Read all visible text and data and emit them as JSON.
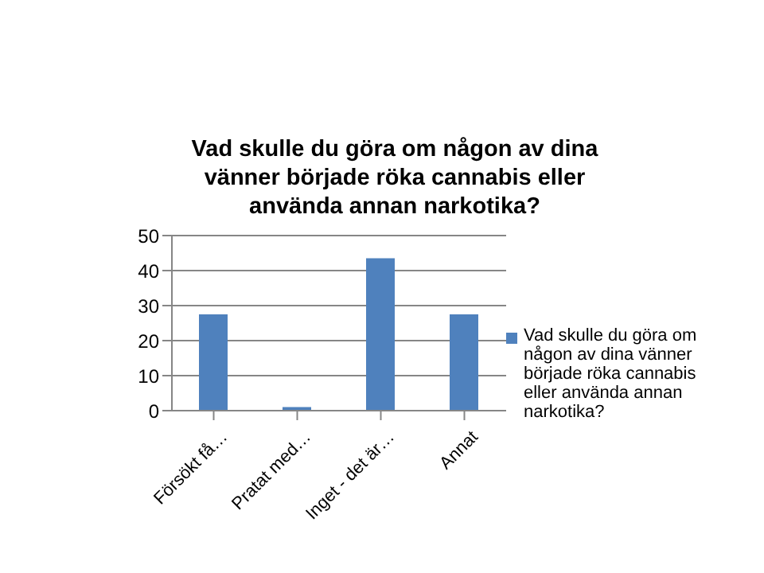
{
  "chart_data": {
    "type": "bar",
    "title": "Vad skulle du göra om någon av dina vänner började röka cannabis eller använda annan narkotika?",
    "categories": [
      "Försökt få…",
      "Pratat med…",
      "Inget - det är…",
      "Annat"
    ],
    "series": [
      {
        "name": "Vad skulle du göra om någon av dina vänner började röka cannabis eller använda annan narkotika?",
        "color": "#4f81bd",
        "values": [
          27.5,
          1,
          43.5,
          27.5
        ]
      }
    ],
    "ylim": [
      0,
      50
    ],
    "yticks": [
      0,
      10,
      20,
      30,
      40,
      50
    ],
    "grid": "y",
    "legend": "right"
  }
}
